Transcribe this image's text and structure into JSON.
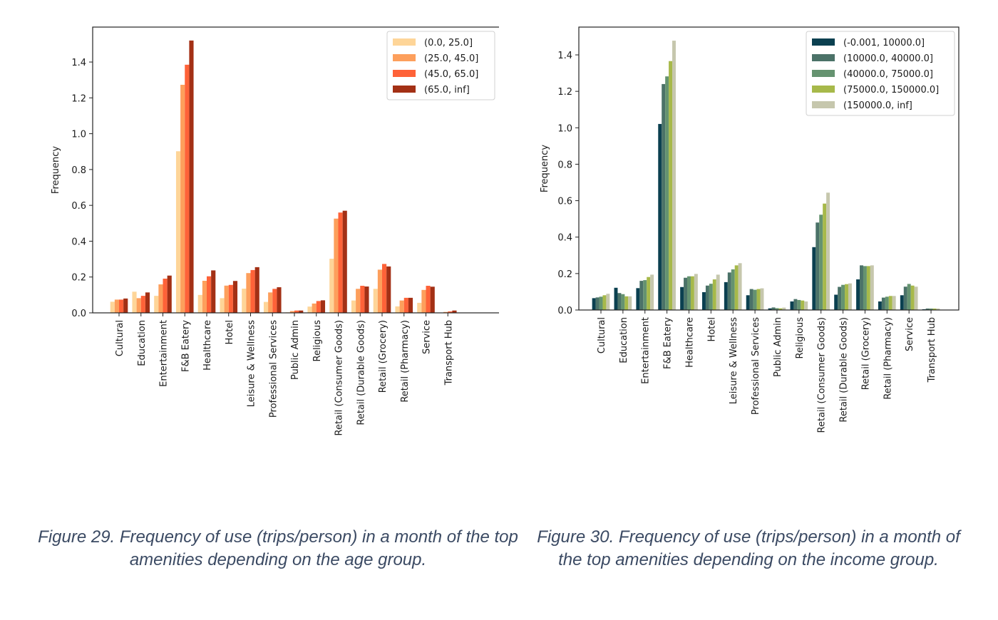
{
  "chart_data": [
    {
      "type": "bar",
      "title": "",
      "xlabel": "",
      "ylabel": "Frequency",
      "ylim": [
        0,
        1.6
      ],
      "yticks": [
        "0.0",
        "0.2",
        "0.4",
        "0.6",
        "0.8",
        "1.0",
        "1.2",
        "1.4"
      ],
      "grid": false,
      "legend_position": "top-right",
      "categories": [
        "Cultural",
        "Education",
        "Entertainment",
        "F&B Eatery",
        "Healthcare",
        "Hotel",
        "Leisure & Wellness",
        "Professional Services",
        "Public Admin",
        "Religious",
        "Retail (Consumer Goods)",
        "Retail (Durable Goods)",
        "Retail (Grocery)",
        "Retail (Pharmacy)",
        "Service",
        "Transport Hub"
      ],
      "series": [
        {
          "name": "(0.0, 25.0]",
          "color": "#fed598",
          "values": [
            0.062,
            0.118,
            0.095,
            0.902,
            0.1,
            0.082,
            0.135,
            0.061,
            0.003,
            0.035,
            0.302,
            0.069,
            0.134,
            0.036,
            0.056,
            0.002
          ]
        },
        {
          "name": "(25.0, 45.0]",
          "color": "#fd9f5c",
          "values": [
            0.074,
            0.082,
            0.159,
            1.273,
            0.179,
            0.152,
            0.222,
            0.114,
            0.01,
            0.052,
            0.526,
            0.134,
            0.241,
            0.069,
            0.128,
            0.005
          ]
        },
        {
          "name": "(45.0, 65.0]",
          "color": "#fe6238",
          "values": [
            0.074,
            0.095,
            0.191,
            1.385,
            0.204,
            0.156,
            0.239,
            0.134,
            0.013,
            0.066,
            0.56,
            0.151,
            0.273,
            0.084,
            0.151,
            0.008
          ]
        },
        {
          "name": "(65.0, inf]",
          "color": "#a33015",
          "values": [
            0.08,
            0.114,
            0.208,
            1.52,
            0.237,
            0.178,
            0.255,
            0.143,
            0.013,
            0.07,
            0.57,
            0.147,
            0.259,
            0.084,
            0.146,
            0.013
          ]
        }
      ]
    },
    {
      "type": "bar",
      "title": "",
      "xlabel": "",
      "ylabel": "Frequency",
      "ylim": [
        0,
        1.55
      ],
      "yticks": [
        "0.0",
        "0.2",
        "0.4",
        "0.6",
        "0.8",
        "1.0",
        "1.2",
        "1.4"
      ],
      "grid": false,
      "legend_position": "top-right",
      "categories": [
        "Cultural",
        "Education",
        "Entertainment",
        "F&B Eatery",
        "Healthcare",
        "Hotel",
        "Leisure & Wellness",
        "Professional Services",
        "Public Admin",
        "Religious",
        "Retail (Consumer Goods)",
        "Retail (Durable Goods)",
        "Retail (Grocery)",
        "Retail (Pharmacy)",
        "Service",
        "Transport Hub"
      ],
      "series": [
        {
          "name": "(-0.001, 10000.0]",
          "color": "#0b4050",
          "values": [
            0.065,
            0.122,
            0.12,
            1.021,
            0.126,
            0.098,
            0.153,
            0.081,
            0.009,
            0.047,
            0.345,
            0.084,
            0.168,
            0.047,
            0.081,
            0.004
          ]
        },
        {
          "name": "(10000.0, 40000.0]",
          "color": "#4b7268",
          "values": [
            0.069,
            0.093,
            0.16,
            1.24,
            0.177,
            0.134,
            0.206,
            0.115,
            0.014,
            0.06,
            0.48,
            0.127,
            0.245,
            0.068,
            0.128,
            0.008
          ]
        },
        {
          "name": "(40000.0, 75000.0]",
          "color": "#659370",
          "values": [
            0.073,
            0.087,
            0.164,
            1.282,
            0.185,
            0.144,
            0.223,
            0.111,
            0.01,
            0.055,
            0.523,
            0.138,
            0.241,
            0.073,
            0.143,
            0.008
          ]
        },
        {
          "name": "(75000.0, 150000.0]",
          "color": "#a7b94a",
          "values": [
            0.081,
            0.075,
            0.181,
            1.366,
            0.185,
            0.168,
            0.245,
            0.115,
            0.009,
            0.052,
            0.584,
            0.142,
            0.241,
            0.077,
            0.134,
            0.008
          ]
        },
        {
          "name": "(150000.0, inf]",
          "color": "#c6c7ad",
          "values": [
            0.089,
            0.075,
            0.194,
            1.478,
            0.198,
            0.194,
            0.257,
            0.119,
            0.013,
            0.047,
            0.644,
            0.146,
            0.245,
            0.077,
            0.128,
            0.008
          ]
        }
      ]
    }
  ],
  "captions": {
    "left": "Figure 29. Frequency of use (trips/person) in a month of the top amenities depending on the age group.",
    "right": "Figure 30. Frequency of use (trips/person) in a month of the top amenities depending on the income group."
  }
}
